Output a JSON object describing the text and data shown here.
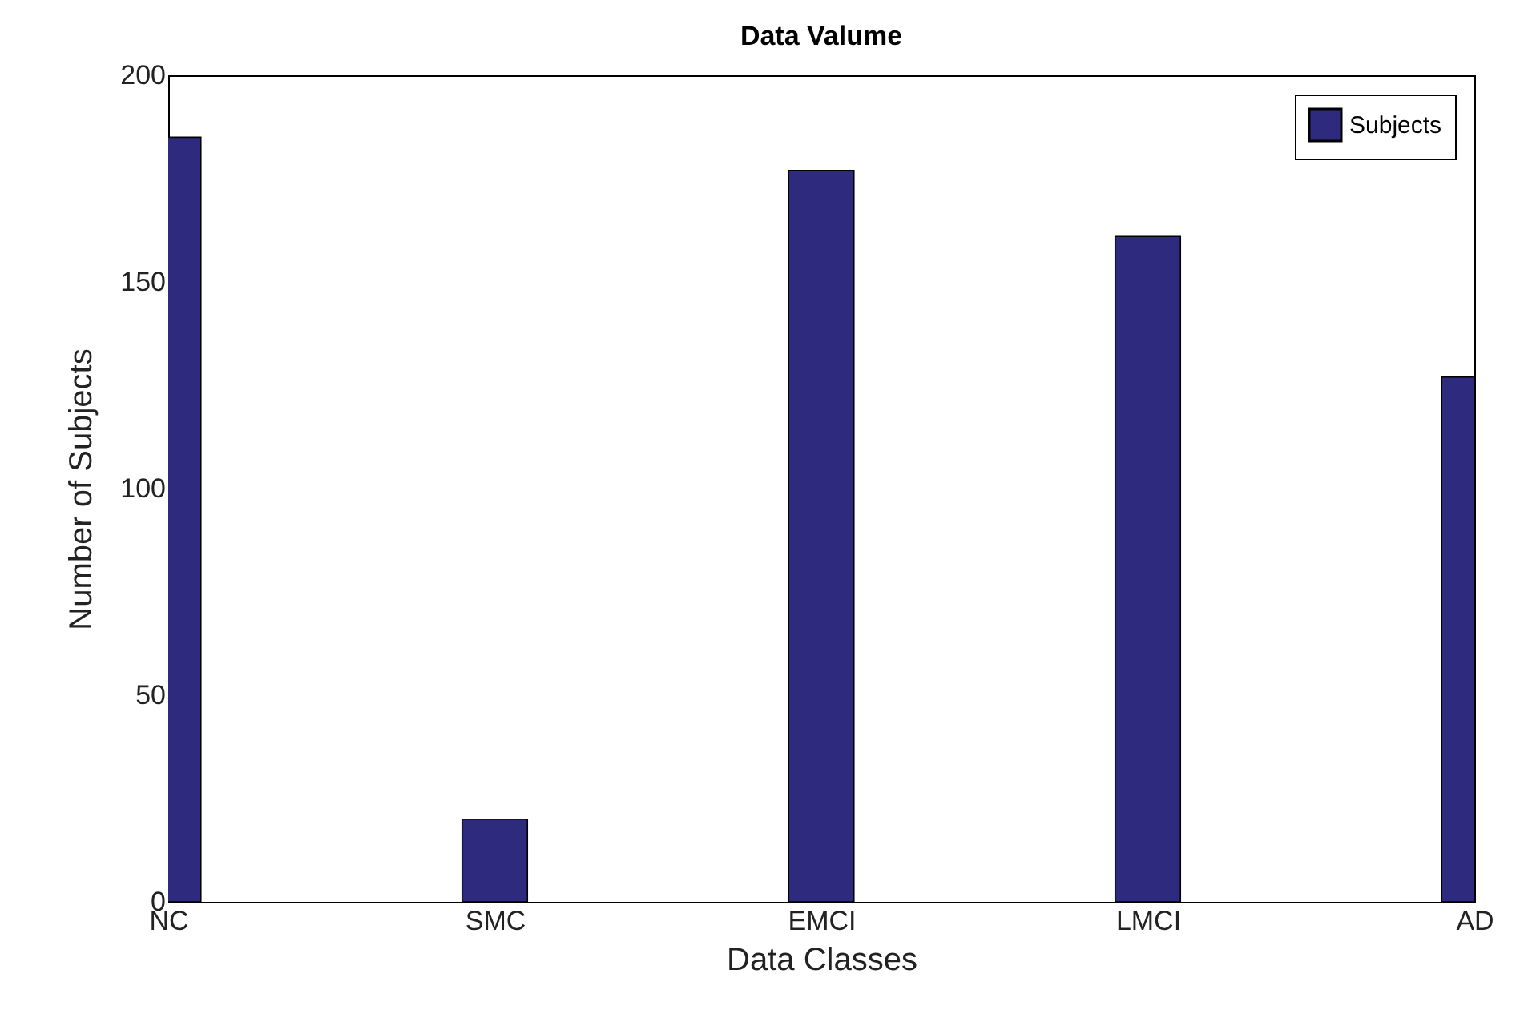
{
  "chart_data": {
    "type": "bar",
    "title": "Data Valume",
    "xlabel": "Data Classes",
    "ylabel": "Number of Subjects",
    "categories": [
      "NC",
      "SMC",
      "EMCI",
      "LMCI",
      "AD"
    ],
    "series": [
      {
        "name": "Subjects",
        "color": "#2e2a7e",
        "values": [
          185,
          20,
          177,
          161,
          127
        ]
      }
    ],
    "ylim": [
      0,
      200
    ],
    "yticks": [
      0,
      50,
      100,
      150,
      200
    ],
    "grid": false,
    "legend": "top right"
  }
}
